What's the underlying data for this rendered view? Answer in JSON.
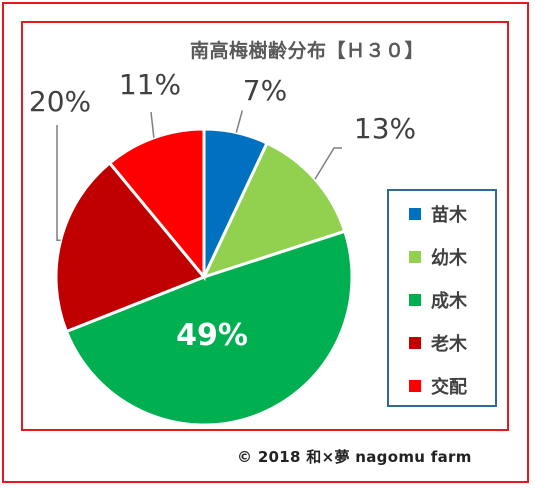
{
  "chart_data": {
    "type": "pie",
    "title": "南高梅樹齢分布【Ｈ３０】",
    "categories": [
      "苗木",
      "幼木",
      "成木",
      "老木",
      "交配"
    ],
    "values": [
      7,
      13,
      49,
      20,
      11
    ],
    "labels": [
      "7%",
      "13%",
      "49%",
      "20%",
      "11%"
    ],
    "colors": [
      "#0070c0",
      "#92d050",
      "#00b050",
      "#c00000",
      "#ff0000"
    ],
    "legend_position": "right"
  },
  "footer": {
    "copyright": "© 2018  和×夢 nagomu  farm"
  }
}
